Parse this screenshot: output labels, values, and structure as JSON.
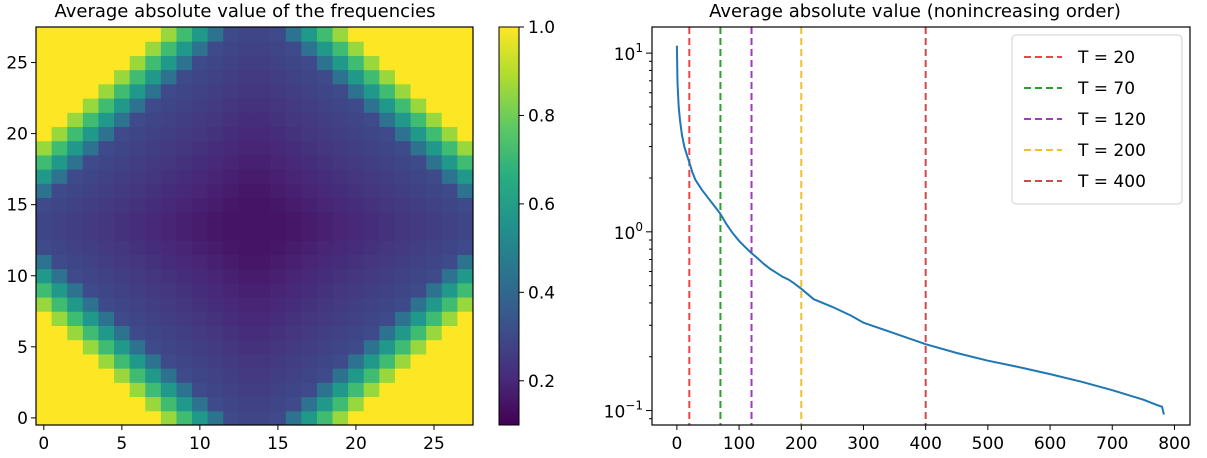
{
  "chart_data": [
    {
      "type": "heatmap",
      "title": "Average absolute value of the frequencies",
      "xlabel": "",
      "ylabel": "",
      "grid_size": [
        28,
        28
      ],
      "origin": "lower",
      "xlim": [
        0,
        27
      ],
      "ylim": [
        0,
        27
      ],
      "xticks": [
        0,
        5,
        10,
        15,
        20,
        25
      ],
      "yticks": [
        0,
        5,
        10,
        15,
        20,
        25
      ],
      "colormap": "viridis",
      "clim": [
        0.1,
        1.0
      ],
      "colorbar": {
        "ticks": [
          0.2,
          0.4,
          0.6,
          0.8,
          1.0
        ],
        "tick_labels": [
          "0.2",
          "0.4",
          "0.6",
          "0.8",
          "1.0"
        ]
      },
      "description_values": "Values near 1.0 in the four corners, decreasing to about 0.15 in the center",
      "grid_lines": false
    },
    {
      "type": "line",
      "title": "Average absolute value (nonincreasing order)",
      "xlabel": "",
      "ylabel": "",
      "yscale": "log",
      "xlim": [
        -40,
        825
      ],
      "ylim": [
        0.083,
        14
      ],
      "xticks": [
        0,
        100,
        200,
        300,
        400,
        500,
        600,
        700,
        800
      ],
      "ytick_labels": [
        {
          "value": 0.1,
          "base": "10",
          "exp": "−1"
        },
        {
          "value": 1,
          "base": "10",
          "exp": "0"
        },
        {
          "value": 10,
          "base": "10",
          "exp": "1"
        }
      ],
      "series": [
        {
          "color": "#1f77b4",
          "x": [
            0,
            1,
            3,
            5,
            8,
            12,
            16,
            20,
            25,
            30,
            40,
            50,
            60,
            70,
            80,
            90,
            100,
            110,
            120,
            130,
            140,
            150,
            160,
            170,
            180,
            190,
            200,
            220,
            250,
            280,
            300,
            350,
            400,
            450,
            500,
            550,
            600,
            650,
            700,
            750,
            770,
            780,
            783
          ],
          "y": [
            11,
            6.8,
            5.0,
            4.2,
            3.5,
            3.0,
            2.7,
            2.45,
            2.15,
            1.95,
            1.72,
            1.55,
            1.4,
            1.26,
            1.1,
            0.98,
            0.89,
            0.82,
            0.76,
            0.71,
            0.66,
            0.62,
            0.59,
            0.56,
            0.54,
            0.51,
            0.48,
            0.42,
            0.38,
            0.34,
            0.31,
            0.27,
            0.235,
            0.21,
            0.19,
            0.175,
            0.16,
            0.145,
            0.13,
            0.115,
            0.108,
            0.105,
            0.095
          ]
        }
      ],
      "vlines": [
        {
          "x": 20,
          "label": "T = 20",
          "color": "#ef4444"
        },
        {
          "x": 70,
          "label": "T = 70",
          "color": "#2ca02c"
        },
        {
          "x": 120,
          "label": "T = 120",
          "color": "#a03cb8"
        },
        {
          "x": 200,
          "label": "T = 200",
          "color": "#f0c030"
        },
        {
          "x": 400,
          "label": "T = 400",
          "color": "#d04a4a"
        }
      ],
      "legend_position": "upper right",
      "grid_lines": false
    }
  ]
}
